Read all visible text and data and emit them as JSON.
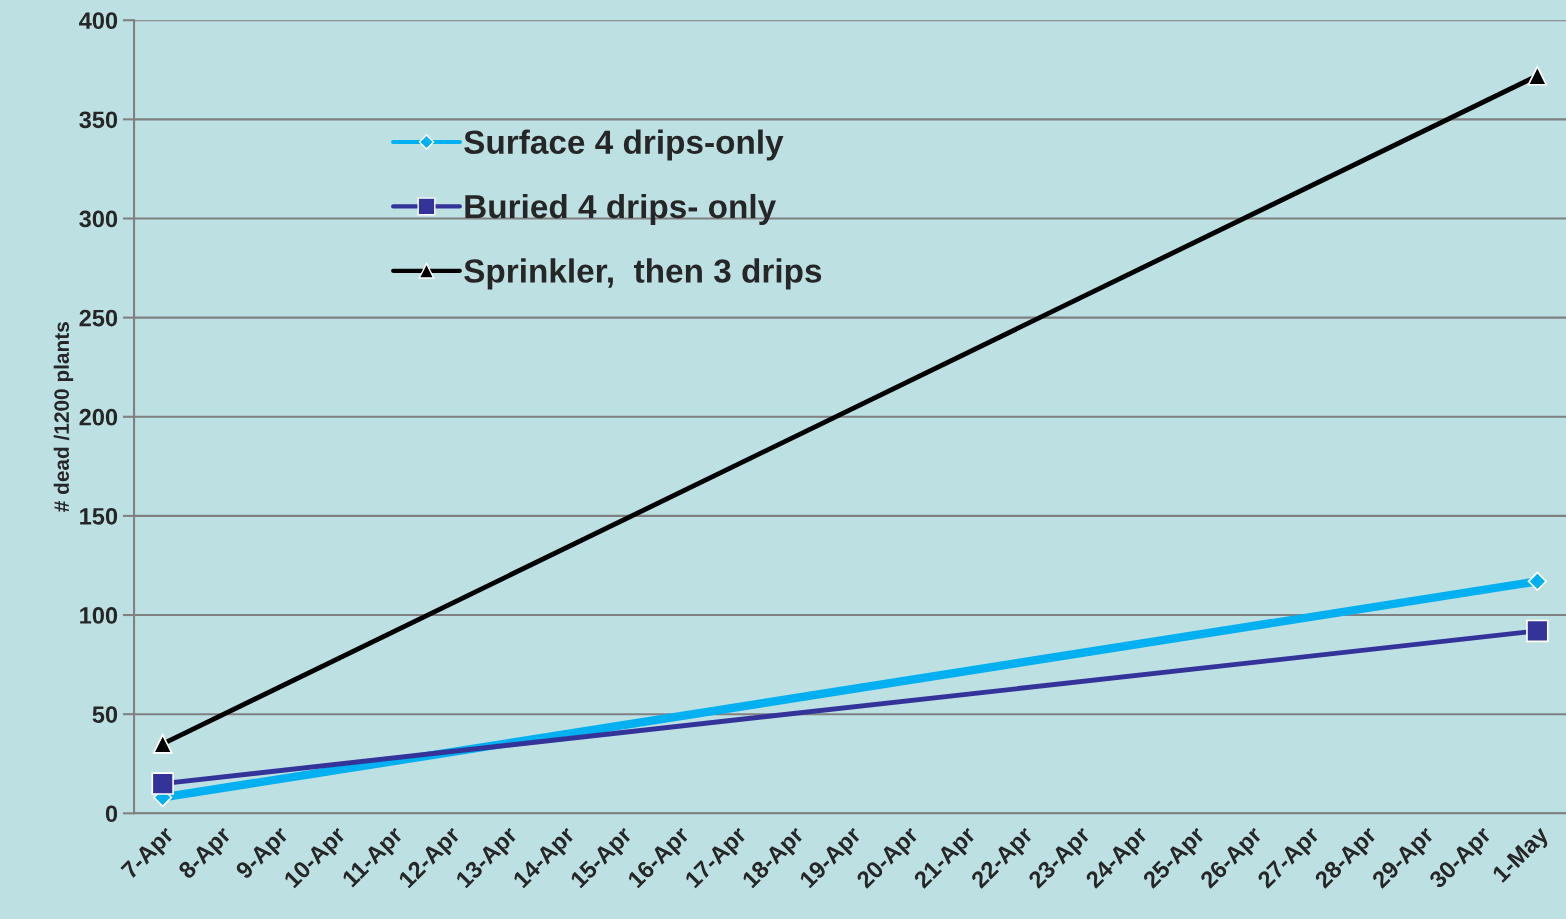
{
  "chart_data": {
    "type": "line",
    "ylabel": "# dead /1200 plants",
    "categories": [
      "7-Apr",
      "8-Apr",
      "9-Apr",
      "10-Apr",
      "11-Apr",
      "12-Apr",
      "13-Apr",
      "14-Apr",
      "15-Apr",
      "16-Apr",
      "17-Apr",
      "18-Apr",
      "19-Apr",
      "20-Apr",
      "21-Apr",
      "22-Apr",
      "23-Apr",
      "24-Apr",
      "25-Apr",
      "26-Apr",
      "27-Apr",
      "28-Apr",
      "29-Apr",
      "30-Apr",
      "1-May"
    ],
    "series": [
      {
        "name": "Surface 4 drips-only",
        "color": "#00b0f0",
        "marker": "diamond",
        "values": [
          8,
          null,
          null,
          null,
          null,
          null,
          null,
          null,
          null,
          null,
          null,
          null,
          null,
          null,
          null,
          null,
          null,
          null,
          null,
          null,
          null,
          null,
          null,
          null,
          117
        ]
      },
      {
        "name": "Buried 4 drips- only",
        "color": "#333399",
        "marker": "square",
        "values": [
          15,
          null,
          null,
          null,
          null,
          null,
          null,
          null,
          null,
          null,
          null,
          null,
          null,
          null,
          null,
          null,
          null,
          null,
          null,
          null,
          null,
          null,
          null,
          null,
          92
        ]
      },
      {
        "name": "Sprinkler,  then 3 drips",
        "color": "#000000",
        "marker": "triangle",
        "values": [
          35,
          null,
          null,
          null,
          null,
          null,
          null,
          null,
          null,
          null,
          null,
          null,
          null,
          null,
          null,
          null,
          null,
          null,
          null,
          null,
          null,
          null,
          null,
          null,
          372
        ]
      }
    ],
    "ylim": [
      0,
      400
    ],
    "yticks": [
      0,
      50,
      100,
      150,
      200,
      250,
      300,
      350,
      400
    ],
    "grid": "y",
    "legend": "top left"
  }
}
